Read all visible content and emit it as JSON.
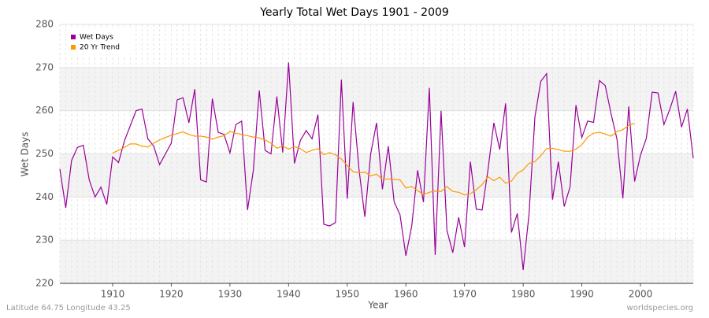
{
  "chart_data": {
    "type": "line",
    "title": "Yearly Total Wet Days 1901 - 2009",
    "x_label": "Year",
    "y_label": "Wet Days",
    "x": [
      1901,
      1902,
      1903,
      1904,
      1905,
      1906,
      1907,
      1908,
      1909,
      1910,
      1911,
      1912,
      1913,
      1914,
      1915,
      1916,
      1917,
      1918,
      1919,
      1920,
      1921,
      1922,
      1923,
      1924,
      1925,
      1926,
      1927,
      1928,
      1929,
      1930,
      1931,
      1932,
      1933,
      1934,
      1935,
      1936,
      1937,
      1938,
      1939,
      1940,
      1941,
      1942,
      1943,
      1944,
      1945,
      1946,
      1947,
      1948,
      1949,
      1950,
      1951,
      1952,
      1953,
      1954,
      1955,
      1956,
      1957,
      1958,
      1959,
      1960,
      1961,
      1962,
      1963,
      1964,
      1965,
      1966,
      1967,
      1968,
      1969,
      1970,
      1971,
      1972,
      1973,
      1974,
      1975,
      1976,
      1977,
      1978,
      1979,
      1980,
      1981,
      1982,
      1983,
      1984,
      1985,
      1986,
      1987,
      1988,
      1989,
      1990,
      1991,
      1992,
      1993,
      1994,
      1995,
      1996,
      1997,
      1998,
      1999,
      2000,
      2001,
      2002,
      2003,
      2004,
      2005,
      2006,
      2007,
      2008,
      2009
    ],
    "series": [
      {
        "name": "Wet Days",
        "color": "#990099",
        "values": [
          246.5,
          237.5,
          248.5,
          251.5,
          252,
          244,
          240,
          242.3,
          238.3,
          249.3,
          248,
          253,
          256.5,
          260,
          260.4,
          253.5,
          251.8,
          247.5,
          250,
          252.5,
          262.5,
          263,
          257.2,
          265,
          244,
          243.5,
          262.8,
          255,
          254.5,
          250.2,
          256.8,
          257.6,
          237,
          246.3,
          264.7,
          250.8,
          250,
          263.3,
          250.3,
          271.2,
          247.8,
          253.1,
          255.4,
          253.5,
          259.1,
          233.7,
          233.3,
          234.1,
          267.2,
          239.6,
          262,
          246.5,
          235.4,
          250,
          257.2,
          241.8,
          251.8,
          238.9,
          235.9,
          226.4,
          233.3,
          246.2,
          238.8,
          265.3,
          226.6,
          260,
          232.3,
          227.1,
          235.3,
          228.4,
          248.2,
          237.2,
          237,
          246.3,
          257.2,
          251,
          261.7,
          231.8,
          236.2,
          223.1,
          236.1,
          258.5,
          266.8,
          268.6,
          239.4,
          248.2,
          237.8,
          242.4,
          261.3,
          253.8,
          257.6,
          257.3,
          267,
          265.8,
          259.2,
          253.4,
          239.7,
          261,
          243.6,
          249.7,
          253.6,
          264.3,
          264.1,
          256.8,
          260.3,
          264.5,
          256.2,
          260.4,
          249
        ]
      },
      {
        "name": "20 Yr Trend",
        "color": "#ff9900",
        "values": [
          null,
          null,
          null,
          null,
          null,
          null,
          null,
          null,
          null,
          250.2,
          250.8,
          251.5,
          252.3,
          252.3,
          251.8,
          251.6,
          252.5,
          253.2,
          253.8,
          254.3,
          254.7,
          255.1,
          254.5,
          254.1,
          254.1,
          253.9,
          253.4,
          253.9,
          254.2,
          255.2,
          254.8,
          254.5,
          254.2,
          253.9,
          253.7,
          253.2,
          252.5,
          251.3,
          251.8,
          251.1,
          251.7,
          251.2,
          250.3,
          250.8,
          251.2,
          249.8,
          250.3,
          249.8,
          248.8,
          247.3,
          245.9,
          245.6,
          245.8,
          244.9,
          245.3,
          244.1,
          244.2,
          244.1,
          244,
          242.1,
          242.4,
          241.5,
          240.6,
          241.1,
          241.4,
          241.3,
          242.4,
          241.3,
          241.1,
          240.5,
          240.8,
          241.7,
          242.9,
          244.7,
          243.8,
          244.6,
          243.2,
          243.7,
          245.5,
          246.3,
          247.8,
          248.2,
          249.6,
          251.2,
          251.3,
          251,
          250.6,
          250.6,
          251.1,
          252.1,
          253.9,
          254.8,
          255,
          254.6,
          254.1,
          255.2,
          255.6,
          256.6,
          257.1,
          null,
          null,
          null,
          null,
          null,
          null,
          null,
          null,
          null,
          null
        ]
      }
    ],
    "xlim": [
      1901,
      2009
    ],
    "xticks": [
      1910,
      1920,
      1930,
      1940,
      1950,
      1960,
      1970,
      1980,
      1990,
      2000
    ],
    "ylim": [
      220,
      280
    ],
    "yticks": [
      220,
      230,
      240,
      250,
      260,
      270,
      280
    ],
    "grid": true,
    "legend": "upper-left",
    "footer_left": "Latitude 64.75 Longitude 43.25",
    "footer_right": "worldspecies.org"
  }
}
